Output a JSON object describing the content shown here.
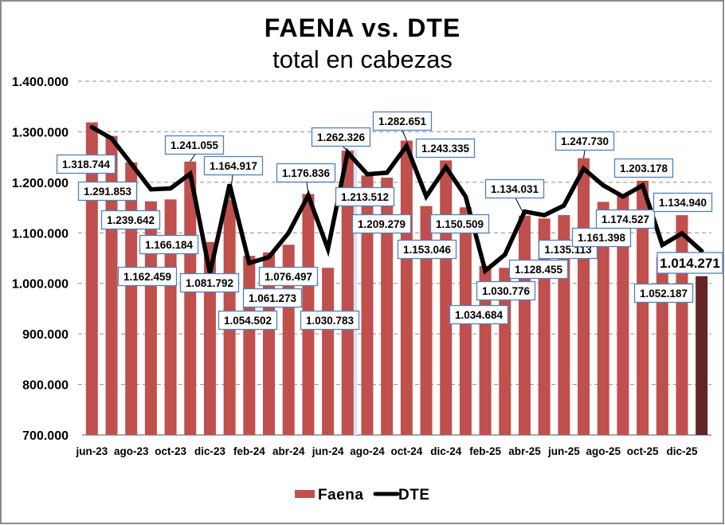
{
  "chart_data": {
    "type": "bar",
    "title": "FAENA vs. DTE",
    "subtitle": "total en cabezas",
    "xlabel": "",
    "ylabel": "",
    "categories": [
      "jun-23",
      "",
      "ago-23",
      "",
      "oct-23",
      "",
      "dic-23",
      "",
      "feb-24",
      "",
      "abr-24",
      "",
      "jun-24",
      "",
      "ago-24",
      "",
      "oct-24",
      "",
      "dic-24",
      "",
      "feb-25",
      "",
      "abr-25",
      "",
      "jun-25",
      "",
      "ago-25",
      "",
      "oct-25",
      "",
      "dic-25",
      ""
    ],
    "ylim": [
      700000,
      1400000
    ],
    "yticks": [
      700000,
      800000,
      900000,
      1000000,
      1100000,
      1200000,
      1300000,
      1400000
    ],
    "ytick_labels": [
      "700.000",
      "800.000",
      "900.000",
      "1.000.000",
      "1.100.000",
      "1.200.000",
      "1.300.000",
      "1.400.000"
    ],
    "grid": true,
    "legend": "bottom",
    "series": [
      {
        "name": "Faena",
        "type": "bar",
        "color": "#C0504D",
        "last_bar_color": "#632523",
        "values": [
          1318744,
          1291853,
          1239642,
          1162459,
          1166184,
          1241055,
          1081792,
          1164917,
          1054502,
          1061273,
          1076497,
          1176836,
          1030783,
          1262326,
          1213512,
          1209279,
          1282651,
          1153046,
          1243335,
          1150509,
          1034684,
          1030776,
          1134031,
          1128455,
          1135113,
          1247730,
          1161398,
          1174527,
          1203178,
          1052187,
          1134940,
          1014271
        ],
        "data_labels": [
          "1.318.744",
          "1.291.853",
          "1.239.642",
          "1.162.459",
          "1.166.184",
          "1.241.055",
          "1.081.792",
          "1.164.917",
          "1.054.502",
          "1.061.273",
          "1.076.497",
          "1.176.836",
          "1.030.783",
          "1.262.326",
          "1.213.512",
          "1.209.279",
          "1.282.651",
          "1.153.046",
          "1.243.335",
          "1.150.509",
          "1.034.684",
          "1.030.776",
          "1.134.031",
          "1.128.455",
          "1.135.113",
          "1.247.730",
          "1.161.398",
          "1.174.527",
          "1.203.178",
          "1.052.187",
          "1.134.940",
          "1.014.271"
        ]
      },
      {
        "name": "DTE",
        "type": "line",
        "color": "#000000",
        "values": [
          1309000,
          1287000,
          1237000,
          1186000,
          1188000,
          1217000,
          1020000,
          1196000,
          1040000,
          1052000,
          1100000,
          1174000,
          1068000,
          1259000,
          1216000,
          1219000,
          1272000,
          1172000,
          1230000,
          1172000,
          1025000,
          1057000,
          1142000,
          1135000,
          1154000,
          1227000,
          1194000,
          1172000,
          1194000,
          1076000,
          1099000,
          1064000
        ]
      }
    ],
    "label_border_color": "#4F81BD",
    "grid_color": "#8C8C8C"
  }
}
